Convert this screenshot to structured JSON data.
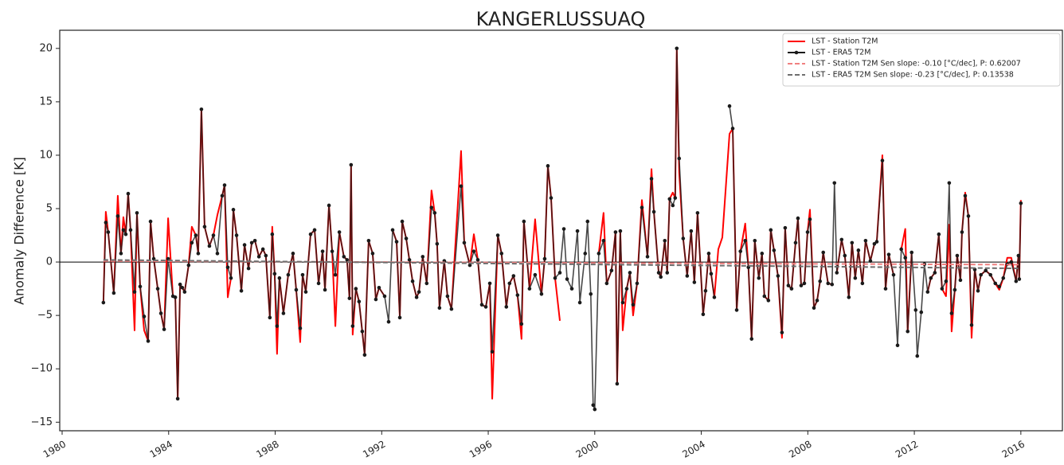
{
  "chart_data": {
    "type": "line",
    "title": "KANGERLUSSUAQ",
    "ylabel": "Anomaly Difference [K]",
    "xlim": [
      1979.91,
      2017.56
    ],
    "ylim": [
      -15.8,
      21.7
    ],
    "xticks": [
      1980,
      1984,
      1988,
      1992,
      1996,
      2000,
      2004,
      2008,
      2012,
      2016
    ],
    "yticks": [
      {
        "value": -15,
        "label": "−15"
      },
      {
        "value": -10,
        "label": "−10"
      },
      {
        "value": -5,
        "label": "−5"
      },
      0,
      5,
      10,
      15,
      20
    ],
    "hline": 0,
    "legend": "upper right",
    "x": [
      1981.55,
      1981.64,
      1981.73,
      1981.94,
      1982.09,
      1982.21,
      1982.3,
      1982.39,
      1982.48,
      1982.57,
      1982.72,
      1982.81,
      1982.93,
      1983.08,
      1983.23,
      1983.32,
      1983.44,
      1983.59,
      1983.71,
      1983.83,
      1983.98,
      1984.16,
      1984.25,
      1984.34,
      1984.43,
      1984.51,
      1984.6,
      1984.75,
      1984.87,
      1985.02,
      1985.11,
      1985.23,
      1985.35,
      1985.53,
      1985.68,
      1985.83,
      1986.01,
      1986.1,
      1986.22,
      1986.34,
      1986.43,
      1986.55,
      1986.73,
      1986.85,
      1987.0,
      1987.12,
      1987.24,
      1987.39,
      1987.54,
      1987.65,
      1987.8,
      1987.89,
      1987.98,
      1988.07,
      1988.16,
      1988.31,
      1988.49,
      1988.67,
      1988.79,
      1988.94,
      1989.03,
      1989.15,
      1989.33,
      1989.48,
      1989.63,
      1989.78,
      1989.87,
      1990.02,
      1990.14,
      1990.26,
      1990.41,
      1990.58,
      1990.7,
      1990.79,
      1990.85,
      1990.91,
      1991.03,
      1991.15,
      1991.27,
      1991.36,
      1991.51,
      1991.66,
      1991.78,
      1991.9,
      1992.11,
      1992.26,
      1992.41,
      1992.56,
      1992.68,
      1992.77,
      1992.92,
      1993.04,
      1993.16,
      1993.31,
      1993.4,
      1993.54,
      1993.69,
      1993.87,
      1993.99,
      1994.08,
      1994.17,
      1994.35,
      1994.47,
      1994.62,
      1994.98,
      1995.1,
      1995.31,
      1995.46,
      1995.61,
      1995.76,
      1995.91,
      1996.06,
      1996.15,
      1996.36,
      1996.5,
      1996.68,
      1996.8,
      1996.95,
      1997.1,
      1997.25,
      1997.34,
      1997.55,
      1997.76,
      1998.0,
      1998.12,
      1998.24,
      1998.36,
      1998.51,
      1998.69,
      1998.84,
      1998.96,
      1999.14,
      1999.35,
      1999.44,
      1999.64,
      1999.73,
      1999.85,
      1999.94,
      2000.0,
      2000.15,
      2000.33,
      2000.45,
      2000.63,
      2000.78,
      2000.84,
      2000.96,
      2001.05,
      2001.2,
      2001.32,
      2001.44,
      2001.59,
      2001.77,
      2001.98,
      2002.13,
      2002.22,
      2002.4,
      2002.48,
      2002.63,
      2002.72,
      2002.81,
      2002.93,
      2003.02,
      2003.08,
      2003.17,
      2003.32,
      2003.47,
      2003.62,
      2003.74,
      2003.86,
      2004.07,
      2004.16,
      2004.28,
      2004.37,
      2004.49,
      2004.64,
      2004.79,
      2005.06,
      2005.18,
      2005.33,
      2005.47,
      2005.65,
      2005.77,
      2005.89,
      2006.01,
      2006.16,
      2006.28,
      2006.37,
      2006.52,
      2006.61,
      2006.73,
      2006.88,
      2007.03,
      2007.15,
      2007.27,
      2007.39,
      2007.54,
      2007.63,
      2007.75,
      2007.87,
      2007.99,
      2008.08,
      2008.23,
      2008.35,
      2008.46,
      2008.58,
      2008.76,
      2008.91,
      2009.0,
      2009.09,
      2009.27,
      2009.39,
      2009.54,
      2009.66,
      2009.78,
      2009.9,
      2010.05,
      2010.17,
      2010.35,
      2010.5,
      2010.59,
      2010.8,
      2010.92,
      2011.04,
      2011.22,
      2011.37,
      2011.51,
      2011.66,
      2011.75,
      2011.9,
      2012.05,
      2012.11,
      2012.26,
      2012.38,
      2012.5,
      2012.62,
      2012.77,
      2012.92,
      2013.04,
      2013.19,
      2013.31,
      2013.4,
      2013.52,
      2013.61,
      2013.73,
      2013.79,
      2013.91,
      2014.03,
      2014.15,
      2014.27,
      2014.39,
      2014.5,
      2014.68,
      2014.86,
      2015.04,
      2015.19,
      2015.34,
      2015.49,
      2015.64,
      2015.82,
      2015.91,
      2015.94,
      2016.0
    ],
    "series": [
      {
        "name": "LST - Station T2M",
        "color": "#ff0000",
        "values": [
          -3.8,
          4.7,
          2.8,
          -2.9,
          6.2,
          0.8,
          4.2,
          2.6,
          6.4,
          3.0,
          -6.4,
          4.6,
          -2.3,
          -6.4,
          -7.4,
          3.8,
          0.3,
          -2.5,
          -4.8,
          -6.3,
          4.1,
          -3.2,
          -3.3,
          -12.8,
          -2.1,
          -2.4,
          -2.8,
          -0.3,
          3.3,
          2.5,
          0.8,
          14.3,
          3.3,
          1.5,
          2.5,
          4.4,
          6.2,
          7.2,
          -3.3,
          -1.5,
          4.9,
          2.5,
          -2.7,
          1.6,
          -0.6,
          1.8,
          2.0,
          0.5,
          1.2,
          0.6,
          -5.2,
          3.3,
          -1.1,
          -8.6,
          -1.5,
          -4.8,
          -1.2,
          0.8,
          -2.6,
          -7.5,
          -1.2,
          -2.8,
          2.6,
          3.0,
          -2.0,
          1.0,
          -2.6,
          5.3,
          1.0,
          -6.0,
          2.8,
          0.5,
          0.2,
          -3.4,
          9.1,
          -6.8,
          -2.5,
          -3.7,
          -6.5,
          -8.7,
          2.0,
          0.8,
          -3.5,
          -2.4,
          -3.2,
          null,
          3.0,
          1.9,
          -5.2,
          3.8,
          2.2,
          0.2,
          -1.8,
          -3.3,
          -2.8,
          0.5,
          -2.0,
          6.7,
          4.6,
          1.7,
          -4.3,
          0.1,
          -3.2,
          -4.4,
          10.4,
          1.8,
          -0.3,
          2.6,
          0.2,
          -4.0,
          -4.2,
          -2.0,
          -12.8,
          2.5,
          0.8,
          -4.2,
          -2.0,
          -1.3,
          -3.1,
          -7.2,
          3.8,
          -2.5,
          4.0,
          -3.0,
          0.3,
          9.0,
          6.0,
          -1.5,
          -5.5,
          null,
          null,
          null,
          null,
          null,
          null,
          null,
          null,
          null,
          null,
          0.8,
          4.6,
          -2.0,
          -0.8,
          2.8,
          -11.4,
          2.9,
          -6.4,
          -2.5,
          -1.0,
          -5.0,
          -2.0,
          5.8,
          0.5,
          8.7,
          4.7,
          -1.0,
          -1.4,
          2.0,
          -1.0,
          5.9,
          6.5,
          6.0,
          20.0,
          8.4,
          2.2,
          -1.3,
          2.9,
          -1.9,
          4.6,
          -4.9,
          -2.7,
          0.8,
          -1.1,
          -3.3,
          1.2,
          2.3,
          12.0,
          12.5,
          -4.5,
          1.0,
          3.6,
          -0.5,
          -7.2,
          2.0,
          -1.5,
          0.8,
          -3.2,
          -3.6,
          3.0,
          1.1,
          -1.3,
          -7.1,
          3.2,
          -2.2,
          -2.5,
          1.8,
          4.1,
          -2.2,
          -2.0,
          2.8,
          4.9,
          -4.3,
          -3.6,
          -1.8,
          0.9,
          -2.0,
          -2.1,
          null,
          -1.0,
          2.1,
          0.6,
          -3.3,
          1.8,
          -1.5,
          1.1,
          -2.0,
          2.0,
          0.1,
          1.7,
          1.9,
          10.0,
          -2.5,
          0.7,
          -1.2,
          null,
          1.2,
          3.1,
          -6.5,
          0.9,
          null,
          null,
          null,
          null,
          -2.8,
          -1.5,
          -1.0,
          2.6,
          -2.5,
          -3.2,
          3.5,
          -6.5,
          -2.6,
          0.6,
          -1.7,
          2.8,
          6.5,
          4.3,
          -7.1,
          -0.7,
          -2.7,
          -1.2,
          -0.8,
          -1.2,
          -2.0,
          -2.6,
          -1.5,
          0.4,
          0.4,
          -1.8,
          0.6,
          -1.6,
          5.8
        ]
      },
      {
        "name": "LST - ERA5 T2M",
        "color": "#1a1a1a",
        "markers": true,
        "values": [
          -3.8,
          3.7,
          2.8,
          -2.9,
          4.3,
          0.8,
          3.0,
          2.6,
          6.4,
          3.0,
          -2.8,
          4.6,
          -2.3,
          -5.1,
          -7.4,
          3.8,
          0.3,
          -2.5,
          -4.8,
          -6.3,
          0.3,
          -3.2,
          -3.3,
          -12.8,
          -2.1,
          -2.4,
          -2.8,
          -0.3,
          1.8,
          2.5,
          0.8,
          14.3,
          3.3,
          1.5,
          2.5,
          0.8,
          6.2,
          7.2,
          -0.5,
          -1.5,
          4.9,
          2.5,
          -2.7,
          1.6,
          -0.6,
          1.8,
          2.0,
          0.5,
          1.2,
          0.6,
          -5.2,
          2.6,
          -1.1,
          -6.0,
          -1.5,
          -4.8,
          -1.2,
          0.8,
          -2.6,
          -6.2,
          -1.2,
          -2.8,
          2.6,
          3.0,
          -2.0,
          1.0,
          -2.6,
          5.3,
          1.0,
          -1.2,
          2.8,
          0.5,
          0.2,
          -3.4,
          9.1,
          -6.0,
          -2.5,
          -3.7,
          -6.5,
          -8.7,
          2.0,
          0.8,
          -3.5,
          -2.4,
          -3.2,
          -5.6,
          3.0,
          1.9,
          -5.2,
          3.8,
          2.2,
          0.2,
          -1.8,
          -3.3,
          -2.8,
          0.5,
          -2.0,
          5.1,
          4.6,
          1.7,
          -4.3,
          0.1,
          -3.2,
          -4.4,
          7.1,
          1.8,
          -0.3,
          1.0,
          0.2,
          -4.0,
          -4.2,
          -2.0,
          -8.4,
          2.5,
          0.8,
          -4.2,
          -2.0,
          -1.3,
          -3.1,
          -5.8,
          3.8,
          -2.5,
          -1.2,
          -3.0,
          0.3,
          9.0,
          6.0,
          -1.5,
          -1.0,
          3.1,
          -1.6,
          -2.5,
          2.9,
          -3.8,
          0.8,
          3.8,
          -3.0,
          -13.4,
          -13.8,
          0.8,
          2.0,
          -2.0,
          -0.8,
          2.8,
          -11.4,
          2.9,
          -3.8,
          -2.5,
          -1.0,
          -4.0,
          -2.0,
          5.1,
          0.5,
          7.8,
          4.7,
          -1.0,
          -1.4,
          2.0,
          -1.0,
          5.9,
          5.3,
          6.0,
          20.0,
          9.7,
          2.2,
          -1.3,
          2.9,
          -1.9,
          4.6,
          -4.9,
          -2.7,
          0.8,
          -1.1,
          -3.3,
          null,
          null,
          14.6,
          12.5,
          -4.5,
          1.0,
          2.0,
          -0.5,
          -7.2,
          2.0,
          -1.5,
          0.8,
          -3.2,
          -3.6,
          3.0,
          1.1,
          -1.3,
          -6.6,
          3.2,
          -2.2,
          -2.5,
          1.8,
          4.1,
          -2.2,
          -2.0,
          2.8,
          4.0,
          -4.3,
          -3.6,
          -1.8,
          0.9,
          -2.0,
          -2.1,
          7.4,
          -1.0,
          2.1,
          0.6,
          -3.3,
          1.8,
          -1.5,
          1.1,
          -2.0,
          2.0,
          0.1,
          1.7,
          1.9,
          9.5,
          -2.5,
          0.7,
          -1.2,
          -7.8,
          1.2,
          0.4,
          -6.5,
          0.9,
          -4.5,
          -8.8,
          -4.7,
          -0.2,
          -2.8,
          -1.5,
          -1.0,
          2.6,
          -2.5,
          -1.8,
          7.4,
          -4.8,
          -2.6,
          0.6,
          -1.7,
          2.8,
          6.2,
          4.3,
          -5.9,
          -0.7,
          -2.7,
          -1.2,
          -0.8,
          -1.2,
          -2.0,
          -2.3,
          -1.5,
          -0.2,
          0.0,
          -1.8,
          0.6,
          -1.6,
          5.5
        ]
      },
      {
        "name": "LST - Station T2M  Sen slope: -0.10 [°C/dec], P: 0.62007",
        "color": "#f08080",
        "dashed": true,
        "x": [
          1981.55,
          2016.0
        ],
        "values": [
          0.1,
          -0.25
        ]
      },
      {
        "name": "LST - ERA5 T2M Sen slope: -0.23 [°C/dec], P: 0.13538",
        "color": "#6e6e6e",
        "dashed": true,
        "x": [
          1981.55,
          2016.0
        ],
        "values": [
          0.2,
          -0.6
        ]
      }
    ]
  }
}
